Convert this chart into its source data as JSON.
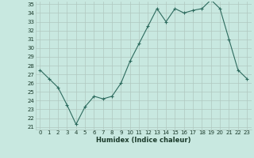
{
  "x": [
    0,
    1,
    2,
    3,
    4,
    5,
    6,
    7,
    8,
    9,
    10,
    11,
    12,
    13,
    14,
    15,
    16,
    17,
    18,
    19,
    20,
    21,
    22,
    23
  ],
  "y": [
    27.5,
    26.5,
    25.5,
    23.5,
    21.3,
    23.3,
    24.5,
    24.2,
    24.5,
    26.0,
    28.5,
    30.5,
    32.5,
    34.5,
    33.0,
    34.5,
    34.0,
    34.3,
    34.5,
    35.5,
    34.5,
    31.0,
    27.5,
    26.5
  ],
  "xlabel": "Humidex (Indice chaleur)",
  "ylim": [
    21,
    35
  ],
  "xlim": [
    -0.5,
    23.5
  ],
  "yticks": [
    21,
    22,
    23,
    24,
    25,
    26,
    27,
    28,
    29,
    30,
    31,
    32,
    33,
    34,
    35
  ],
  "xticks": [
    0,
    1,
    2,
    3,
    4,
    5,
    6,
    7,
    8,
    9,
    10,
    11,
    12,
    13,
    14,
    15,
    16,
    17,
    18,
    19,
    20,
    21,
    22,
    23
  ],
  "line_color": "#2d6b5e",
  "marker": "+",
  "bg_color": "#c8e8e0",
  "grid_color": "#b0c8c0",
  "font_color": "#1a3a2a",
  "tick_fontsize": 5,
  "xlabel_fontsize": 6,
  "linewidth": 0.8,
  "markersize": 3,
  "markeredgewidth": 0.8
}
